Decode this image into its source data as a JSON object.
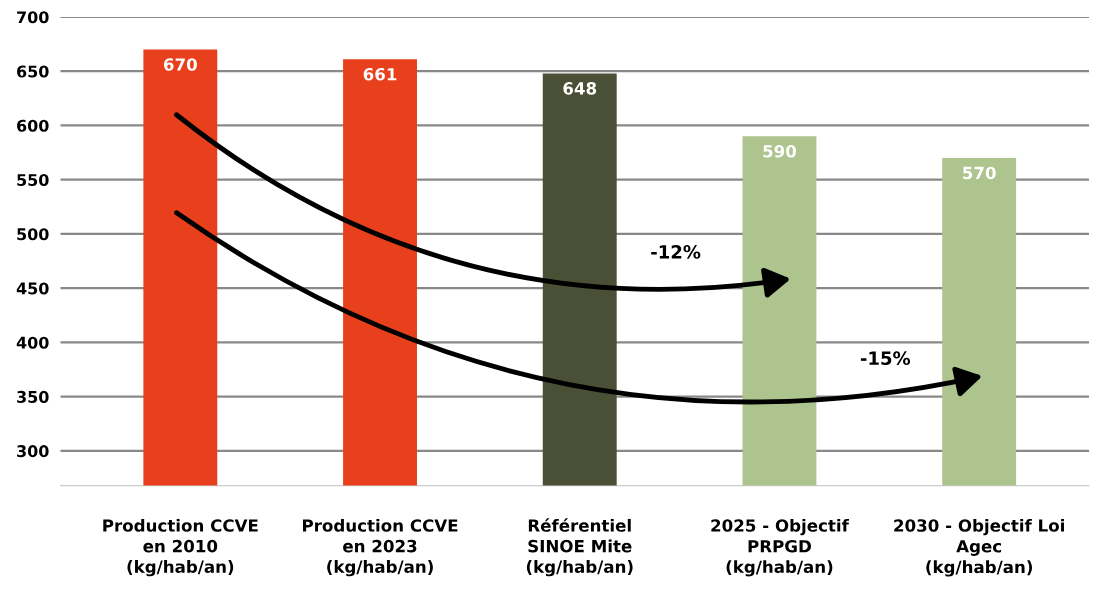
{
  "chart_data": {
    "type": "bar",
    "categories": [
      "Production CCVE\nen 2010\n(kg/hab/an)",
      "Production CCVE\nen 2023\n(kg/hab/an)",
      "Référentiel\nSINOE Mite\n(kg/hab/an)",
      "2025 - Objectif\nPRPGD\n(kg/hab/an)",
      "2030 - Objectif Loi\nAgec\n(kg/hab/an)"
    ],
    "values": [
      670,
      661,
      648,
      590,
      570
    ],
    "colors": [
      "#e8401c",
      "#e8401c",
      "#4a5035",
      "#adc48e",
      "#adc48e"
    ],
    "data_labels": true,
    "ylim": [
      268,
      700
    ],
    "yticks": [
      300,
      350,
      400,
      450,
      500,
      550,
      600,
      650,
      700
    ],
    "grid": "y",
    "annotations": [
      "-12%",
      "-15%"
    ]
  }
}
